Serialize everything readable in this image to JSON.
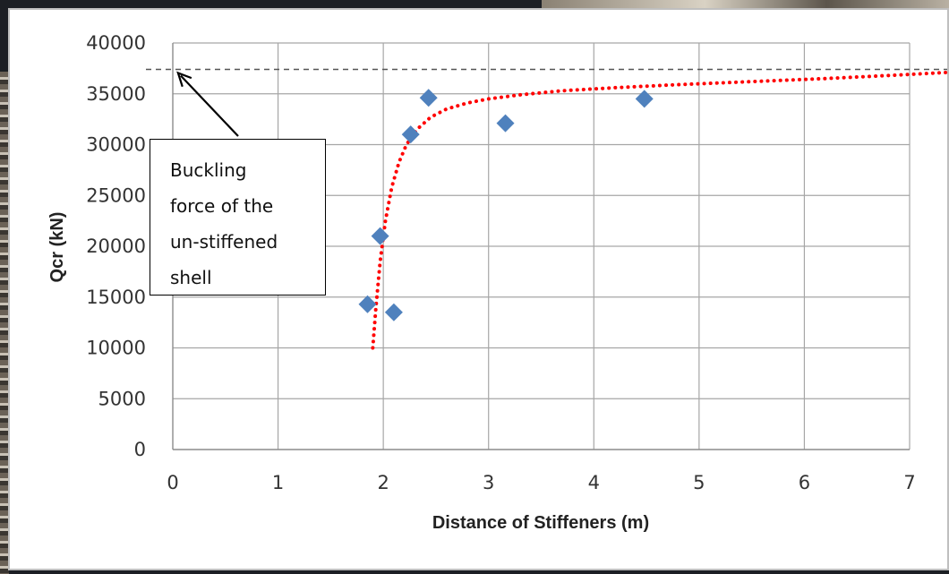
{
  "chart_data": {
    "type": "scatter",
    "xlabel": "Distance of Stiffeners (m)",
    "ylabel": "Qcr (kN)",
    "xlim": [
      0,
      7
    ],
    "ylim": [
      0,
      40000
    ],
    "x_ticks": [
      "0",
      "1",
      "2",
      "3",
      "4",
      "5",
      "6",
      "7"
    ],
    "y_ticks": [
      "0",
      "5000",
      "10000",
      "15000",
      "20000",
      "25000",
      "30000",
      "35000",
      "40000"
    ],
    "grid": true,
    "series": [
      {
        "marker": "diamond",
        "color": "#4f81bd",
        "points": [
          {
            "x": 1.85,
            "y": 14300
          },
          {
            "x": 1.97,
            "y": 21000
          },
          {
            "x": 2.1,
            "y": 13500
          },
          {
            "x": 2.26,
            "y": 31000
          },
          {
            "x": 2.43,
            "y": 34600
          },
          {
            "x": 3.16,
            "y": 32100
          },
          {
            "x": 4.48,
            "y": 34500
          }
        ]
      }
    ],
    "trendline": {
      "style": "dotted",
      "color": "#ff0000",
      "points": [
        [
          1.9,
          10000
        ],
        [
          1.93,
          14000
        ],
        [
          1.97,
          18500
        ],
        [
          2.02,
          22500
        ],
        [
          2.08,
          25800
        ],
        [
          2.15,
          28300
        ],
        [
          2.22,
          30000
        ],
        [
          2.32,
          31500
        ],
        [
          2.45,
          32700
        ],
        [
          2.6,
          33500
        ],
        [
          2.8,
          34100
        ],
        [
          3.0,
          34500
        ],
        [
          3.3,
          34900
        ],
        [
          3.7,
          35300
        ],
        [
          4.2,
          35600
        ],
        [
          4.8,
          35900
        ],
        [
          5.5,
          36200
        ],
        [
          6.2,
          36500
        ],
        [
          6.8,
          36800
        ],
        [
          7.35,
          37100
        ]
      ]
    },
    "reference_line": {
      "y": 37400,
      "style": "dashed",
      "color": "#555555"
    },
    "annotation": {
      "text": "Buckling\nforce of the\nun-stiffened\nshell",
      "arrow_to": {
        "x": 0.05,
        "y": 37400
      }
    }
  }
}
